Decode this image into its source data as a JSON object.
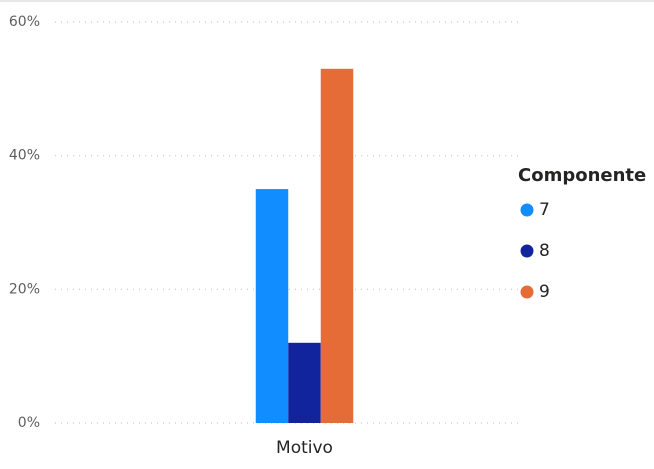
{
  "chart_data": {
    "type": "bar",
    "categories": [
      "Motivo"
    ],
    "legend_title": "Componente",
    "series": [
      {
        "name": "7",
        "color": "#118DFF",
        "values": [
          35
        ]
      },
      {
        "name": "8",
        "color": "#12239E",
        "values": [
          12
        ]
      },
      {
        "name": "9",
        "color": "#E66C37",
        "values": [
          53
        ]
      }
    ],
    "ylim": [
      0,
      60
    ],
    "yticks": [
      {
        "value": 0,
        "label": "0%"
      },
      {
        "value": 20,
        "label": "20%"
      },
      {
        "value": 40,
        "label": "40%"
      },
      {
        "value": 60,
        "label": "60%"
      }
    ],
    "grid": true,
    "legend": "right"
  }
}
